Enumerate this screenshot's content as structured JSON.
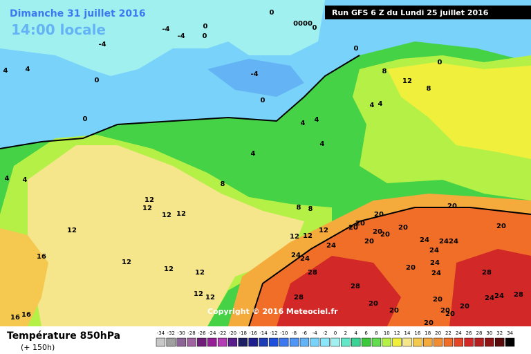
{
  "header": {
    "date": "Dimanche 31 juillet 2016",
    "time": "14:00 locale",
    "run": "Run GFS 6 Z du Lundi 25 juillet 2016"
  },
  "copyright": "Copyright © 2016 Meteociel.fr",
  "footer": {
    "title": "Température 850hPa",
    "lead": "(+ 150h)"
  },
  "contour_labels": [
    0,
    -4,
    -4,
    -4,
    0,
    0,
    "0000",
    0,
    0,
    -4,
    0,
    0,
    0,
    0,
    4,
    4,
    8,
    12,
    8,
    4,
    4,
    4,
    4,
    4,
    4,
    8,
    4,
    4,
    12,
    12,
    12,
    12,
    12,
    16,
    12,
    12,
    12,
    12,
    12,
    16,
    16,
    8,
    8,
    12,
    12,
    12,
    24,
    24,
    24,
    28,
    28,
    28,
    20,
    20,
    20,
    20,
    20,
    20,
    20,
    20,
    20,
    24,
    24,
    24,
    24,
    24,
    24,
    28,
    28,
    24,
    24,
    20,
    20,
    20,
    20,
    20,
    20,
    20,
    20
  ],
  "colorbar": {
    "ticks": [
      -34,
      -32,
      -30,
      -28,
      -26,
      -24,
      -22,
      -20,
      -18,
      -16,
      -14,
      -12,
      -10,
      -8,
      -6,
      -4,
      -2,
      0,
      2,
      4,
      6,
      8,
      10,
      12,
      14,
      16,
      18,
      20,
      22,
      24,
      26,
      28,
      30,
      32,
      34
    ],
    "colors": [
      "#c8c8c8",
      "#a0a0a0",
      "#8c6496",
      "#a064a0",
      "#6e1e78",
      "#961e96",
      "#b43cb4",
      "#5a1e8c",
      "#1e1e64",
      "#1e1e8c",
      "#1e3cb4",
      "#1e50dc",
      "#3c78f0",
      "#5096f5",
      "#64b4f5",
      "#78d2fa",
      "#8ce6fa",
      "#a0f0f0",
      "#64e6c8",
      "#3cd296",
      "#3cc83c",
      "#64dc50",
      "#b4f046",
      "#f0f03c",
      "#f5e68c",
      "#f5c850",
      "#f5aa3c",
      "#f08c32",
      "#f06e28",
      "#e64628",
      "#d22828",
      "#b41e1e",
      "#8c1414",
      "#5a0a0a",
      "#000000"
    ]
  }
}
